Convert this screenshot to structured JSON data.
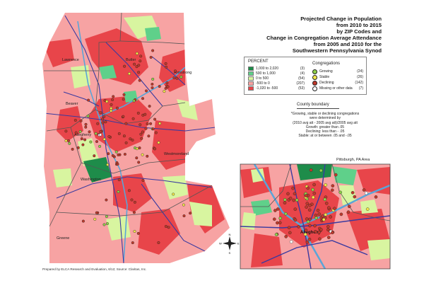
{
  "title": {
    "lines": [
      "Projected Change in Population",
      "from 2010 to 2015",
      "by ZIP Codes and",
      "Change in Congregation Average Attendance",
      "from 2005 and 2010 for the",
      "Southwestern Pennsylvania Synod"
    ]
  },
  "legend": {
    "percent_heading": "PERCENT",
    "percent_items": [
      {
        "label": "1,000 to 2,020",
        "count": "(3)",
        "color": "#1e8c4a"
      },
      {
        "label": "500 to 1,000",
        "count": "(4)",
        "color": "#5fd08a"
      },
      {
        "label": "0 to 500",
        "count": "(54)",
        "color": "#d8f5a0"
      },
      {
        "label": "-500 to 0",
        "count": "(207)",
        "color": "#f7a3a3"
      },
      {
        "label": "-1,020 to -500",
        "count": "(53)",
        "color": "#e8454a"
      }
    ],
    "congregations_heading": "Congregations",
    "congregation_items": [
      {
        "label": "Growing",
        "count": "(24)",
        "color": "#8fd04a"
      },
      {
        "label": "Stable",
        "count": "(26)",
        "color": "#f3e84a"
      },
      {
        "label": "Declining",
        "count": "(142)",
        "color": "#c0392b"
      },
      {
        "label": "Missing or other data",
        "count": "(7)",
        "color": "#ffffff"
      }
    ],
    "boundary_label": "County boundary"
  },
  "note": {
    "lines": [
      "*Growing, stable or declining congregations",
      "were determined by",
      "(2010 avg att - 2005 avg att)/2005 avg att",
      "Growth:  greater than .05",
      "Declining:  less than - .05",
      "Stable:  at or between .05 and -.05"
    ]
  },
  "inset_title": "Pittsburgh, PA Area",
  "credit": "Prepared by ELCA Research and Evaluation, 6/12; Source: Claritas, Inc.",
  "map_labels": {
    "lawrence": "Lawrence",
    "butler": "Butler",
    "armstrong": "Armstrong",
    "beaver": "Beaver",
    "allegheny": "Allegheny",
    "westmoreland": "Westmoreland",
    "washington": "Washington",
    "greene": "Greene",
    "inset_allegheny": "Allegheny"
  },
  "compass": {
    "n": "N",
    "s": "S",
    "e": "E",
    "w": "W"
  },
  "colors": {
    "water": "#5aa5d8",
    "highway": "#3a3aa0",
    "county_line": "#555555"
  }
}
